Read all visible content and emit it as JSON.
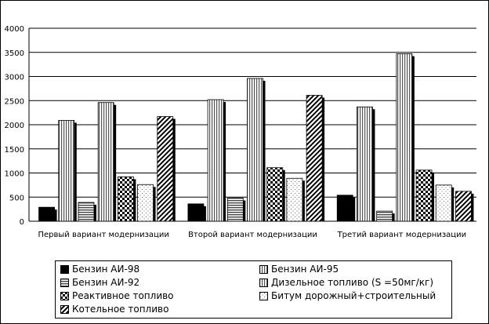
{
  "chart_data": {
    "type": "bar",
    "title": "",
    "xlabel": "",
    "ylabel": "",
    "ylim": [
      0,
      4000
    ],
    "yticks": [
      0,
      500,
      1000,
      1500,
      2000,
      2500,
      3000,
      3500,
      4000
    ],
    "grid": true,
    "legend_position": "bottom",
    "categories": [
      "Первый вариант модернизации",
      "Второй вариант модернизации",
      "Третий вариант модернизации"
    ],
    "series": [
      {
        "name": "Бензин АИ-98",
        "pattern": "solid-black",
        "values": [
          290,
          360,
          540
        ]
      },
      {
        "name": "Бензин АИ-95",
        "pattern": "vertical-lines",
        "values": [
          2090,
          2520,
          2370
        ]
      },
      {
        "name": "Бензин АИ-92",
        "pattern": "horizontal-lines",
        "values": [
          390,
          480,
          210
        ]
      },
      {
        "name": "Дизельное топливо (S =50мг/кг)",
        "pattern": "vertical-lines",
        "values": [
          2460,
          2960,
          3470
        ]
      },
      {
        "name": "Реактивное топливо",
        "pattern": "checker",
        "values": [
          920,
          1110,
          1060
        ]
      },
      {
        "name": "Битум дорожный+строительный",
        "pattern": "dots",
        "values": [
          760,
          890,
          750
        ]
      },
      {
        "name": "Котельное топливо",
        "pattern": "diagonal",
        "values": [
          2170,
          2610,
          620
        ]
      }
    ]
  }
}
